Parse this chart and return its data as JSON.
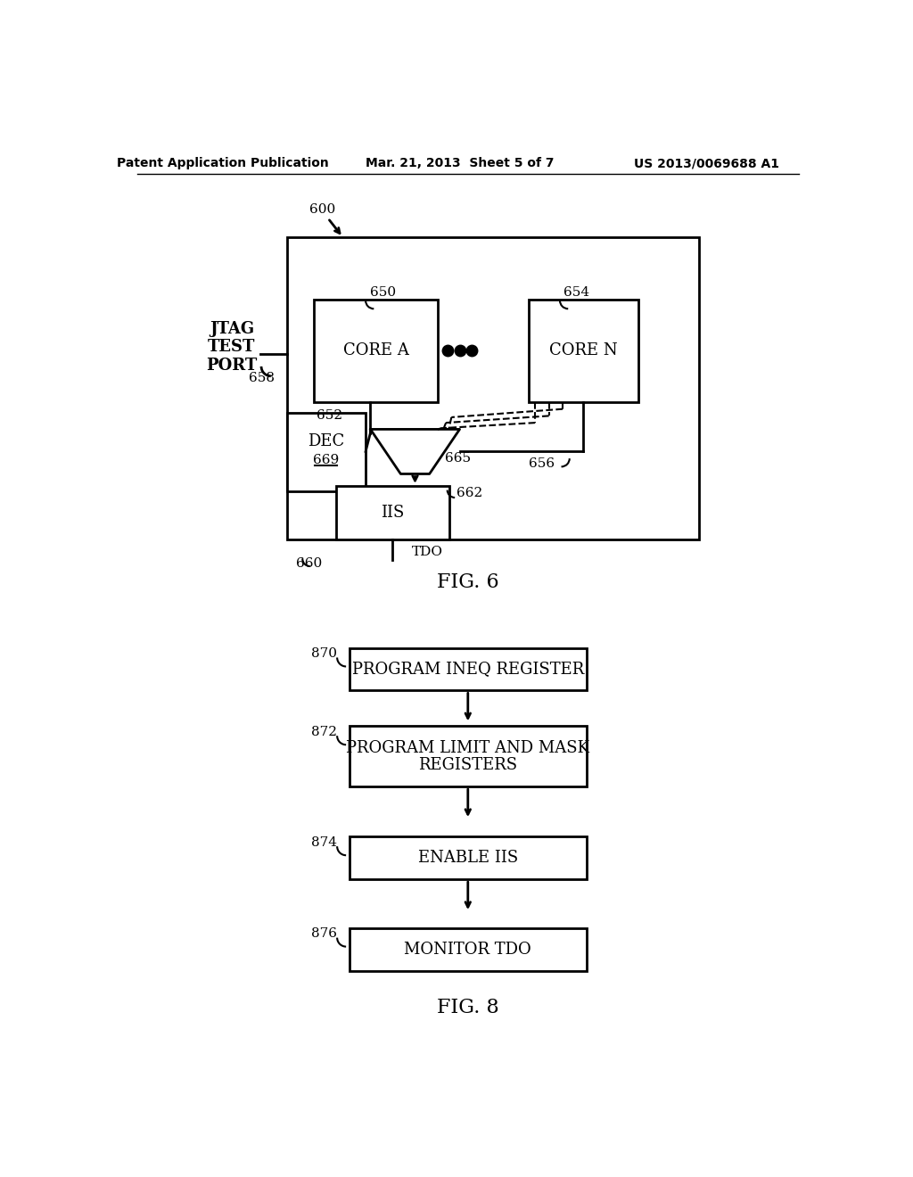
{
  "bg_color": "#ffffff",
  "header_left": "Patent Application Publication",
  "header_mid": "Mar. 21, 2013  Sheet 5 of 7",
  "header_right": "US 2013/0069688 A1",
  "fig6_label": "FIG. 6",
  "fig8_label": "FIG. 8",
  "fig6": {
    "jtag_text": "JTAG\nTEST\nPORT",
    "tdo_text": "TDO",
    "core_a_text": "CORE A",
    "core_n_text": "CORE N",
    "dec_text": "DEC",
    "dec_num": "669",
    "iis_text": "IIS",
    "label_600": "600",
    "label_650": "650",
    "label_652": "652",
    "label_654": "654",
    "label_656": "656",
    "label_658": "658",
    "label_660": "660",
    "label_662": "662",
    "label_665": "665"
  },
  "fig8": {
    "box870_text": "PROGRAM INEQ REGISTER",
    "box872_line1": "PROGRAM LIMIT AND MASK",
    "box872_line2": "REGISTERS",
    "box874_text": "ENABLE IIS",
    "box876_text": "MONITOR TDO",
    "label_870": "870",
    "label_872": "872",
    "label_874": "874",
    "label_876": "876"
  }
}
